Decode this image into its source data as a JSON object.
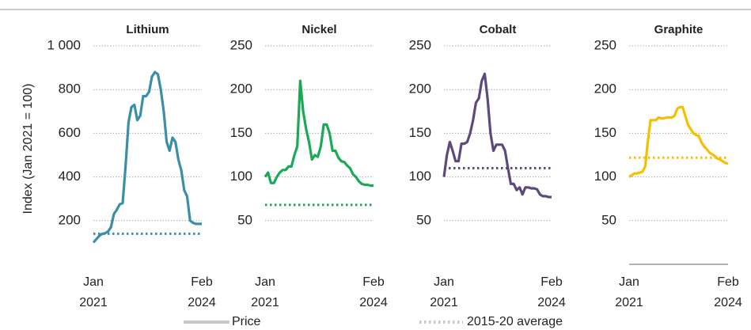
{
  "y_axis_label": "Index (Jan 2021 = 100)",
  "legend": {
    "price": "Price",
    "average": "2015-20 average",
    "color": "#c8c8c8"
  },
  "chart_data": [
    {
      "type": "line",
      "title": "Lithium",
      "color": "#3a8ea5",
      "categories": [
        "Jan 2021",
        null,
        null,
        null,
        null,
        null,
        null,
        null,
        null,
        null,
        null,
        null,
        null,
        null,
        null,
        null,
        null,
        null,
        null,
        null,
        null,
        null,
        null,
        null,
        null,
        null,
        null,
        null,
        null,
        null,
        null,
        null,
        null,
        null,
        null,
        null,
        null,
        "Feb 2024"
      ],
      "values": [
        100,
        115,
        130,
        140,
        142,
        150,
        170,
        230,
        250,
        275,
        280,
        450,
        650,
        720,
        730,
        660,
        680,
        770,
        770,
        790,
        860,
        880,
        870,
        800,
        700,
        560,
        520,
        580,
        560,
        480,
        430,
        340,
        310,
        200,
        190,
        185,
        185,
        185
      ],
      "average": 140,
      "ylim": [
        0,
        1000
      ],
      "yticks": [
        200,
        400,
        600,
        800,
        {
          "value": 1000,
          "label": "1 000"
        }
      ],
      "grid": true,
      "axis_line": false
    },
    {
      "type": "line",
      "title": "Nickel",
      "color": "#1aaa55",
      "categories": [
        "Jan 2021",
        null,
        null,
        null,
        null,
        null,
        null,
        null,
        null,
        null,
        null,
        null,
        null,
        null,
        null,
        null,
        null,
        null,
        null,
        null,
        null,
        null,
        null,
        null,
        null,
        null,
        null,
        null,
        null,
        null,
        null,
        null,
        null,
        null,
        null,
        null,
        null,
        "Feb 2024"
      ],
      "values": [
        100,
        105,
        93,
        93,
        100,
        105,
        108,
        108,
        112,
        112,
        125,
        135,
        210,
        175,
        155,
        140,
        120,
        125,
        123,
        135,
        160,
        160,
        150,
        130,
        130,
        122,
        118,
        117,
        113,
        110,
        103,
        100,
        95,
        92,
        91,
        91,
        90,
        90
      ],
      "average": 68,
      "ylim": [
        0,
        250
      ],
      "yticks": [
        50,
        100,
        150,
        200,
        250
      ],
      "grid": true,
      "axis_line": false
    },
    {
      "type": "line",
      "title": "Cobalt",
      "color": "#5c4a7d",
      "categories": [
        "Jan 2021",
        null,
        null,
        null,
        null,
        null,
        null,
        null,
        null,
        null,
        null,
        null,
        null,
        null,
        null,
        null,
        null,
        null,
        null,
        null,
        null,
        null,
        null,
        null,
        null,
        null,
        null,
        null,
        null,
        null,
        null,
        null,
        null,
        null,
        null,
        null,
        null,
        "Feb 2024"
      ],
      "values": [
        100,
        125,
        140,
        130,
        118,
        118,
        138,
        138,
        140,
        150,
        165,
        185,
        190,
        210,
        218,
        190,
        150,
        130,
        137,
        137,
        137,
        130,
        110,
        92,
        92,
        85,
        88,
        80,
        88,
        88,
        87,
        87,
        86,
        80,
        78,
        78,
        77,
        77
      ],
      "average": 110,
      "ylim": [
        0,
        250
      ],
      "yticks": [
        50,
        100,
        150,
        200,
        250
      ],
      "grid": true,
      "axis_line": false
    },
    {
      "type": "line",
      "title": "Graphite",
      "color": "#f5c000",
      "categories": [
        "Jan 2021",
        null,
        null,
        null,
        null,
        null,
        null,
        null,
        null,
        null,
        null,
        null,
        null,
        null,
        null,
        null,
        null,
        null,
        null,
        null,
        null,
        null,
        null,
        null,
        null,
        null,
        null,
        null,
        null,
        null,
        null,
        null,
        null,
        null,
        null,
        null,
        null,
        "Feb 2024"
      ],
      "values": [
        100,
        102,
        104,
        104,
        105,
        106,
        112,
        140,
        165,
        165,
        165,
        168,
        167,
        167,
        168,
        168,
        168,
        170,
        178,
        180,
        180,
        170,
        160,
        155,
        150,
        148,
        147,
        140,
        135,
        132,
        128,
        126,
        124,
        121,
        120,
        118,
        116,
        115
      ],
      "average": 122,
      "ylim": [
        0,
        250
      ],
      "yticks": [
        50,
        100,
        150,
        200,
        250
      ],
      "grid": true,
      "axis_line": true
    }
  ]
}
